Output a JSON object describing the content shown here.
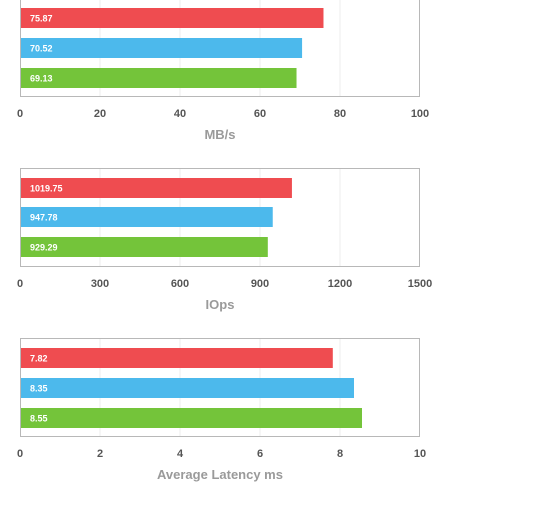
{
  "colors": {
    "series1": "#ef4c50",
    "series2": "#4cb9ec",
    "series3": "#74c43a",
    "frame": "#b8b8b8",
    "grid": "#ececec"
  },
  "chart_data": [
    {
      "type": "bar",
      "orientation": "horizontal",
      "xlabel": "MB/s",
      "xlim": [
        0,
        100
      ],
      "ticks": [
        0,
        20,
        40,
        60,
        80,
        100
      ],
      "values": [
        75.87,
        70.52,
        69.13
      ],
      "labels": [
        "75.87",
        "70.52",
        "69.13"
      ],
      "grid": true
    },
    {
      "type": "bar",
      "orientation": "horizontal",
      "xlabel": "IOps",
      "xlim": [
        0,
        1500
      ],
      "ticks": [
        0,
        300,
        600,
        900,
        1200,
        1500
      ],
      "values": [
        1019.75,
        947.78,
        929.29
      ],
      "labels": [
        "1019.75",
        "947.78",
        "929.29"
      ],
      "grid": true
    },
    {
      "type": "bar",
      "orientation": "horizontal",
      "xlabel": "Average Latency ms",
      "xlim": [
        0,
        10
      ],
      "ticks": [
        0,
        2,
        4,
        6,
        8,
        10
      ],
      "values": [
        7.82,
        8.35,
        8.55
      ],
      "labels": [
        "7.82",
        "8.35",
        "8.55"
      ],
      "grid": true
    }
  ]
}
